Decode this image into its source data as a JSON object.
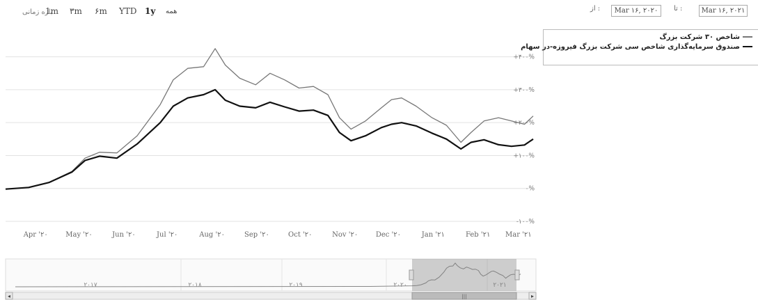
{
  "toolbar": {
    "zoom_label": "بازه زمانی",
    "buttons": [
      "1m",
      "۳m",
      "۶m",
      "YTD",
      "1y",
      "همه"
    ],
    "active": "1y",
    "from_label": "از :",
    "from_value": "Mar ۱۶, ۲۰۲۰",
    "to_label": "تا :",
    "to_value": "Mar ۱۶, ۲۰۲۱"
  },
  "legend": {
    "items": [
      "شاخص ۳۰ شرکت بزرگ",
      "صندوق سرمایه‌گذاری شاخص سی شرکت بزرگ فیروزه-در سهام"
    ]
  },
  "navigator": {
    "labels": [
      "۲۰۱۷",
      "۲۰۱۸",
      "۲۰۱۹",
      "۲۰۲۰",
      "۲۰۲۱"
    ],
    "left_arrow": "◂",
    "right_arrow": "▸",
    "scroll_grip": "|||"
  },
  "chart_data": {
    "type": "line",
    "title": "",
    "xlabel": "",
    "ylabel": "",
    "x_tick_labels": [
      "Apr '۲۰",
      "May '۲۰",
      "Jun '۲۰",
      "Jul '۲۰",
      "Aug '۲۰",
      "Sep '۲۰",
      "Oct '۲۰",
      "Nov '۲۰",
      "Dec '۲۰",
      "Jan '۲۱",
      "Feb '۲۱",
      "Mar '۲۱"
    ],
    "y_ticks": [
      -100,
      0,
      100,
      200,
      300,
      400
    ],
    "y_tick_labels": [
      "-۱۰۰%",
      "۰%",
      "+۱۰۰%",
      "+۲۰۰%",
      "+۳۰۰%",
      "+۴۰۰%"
    ],
    "ylim": [
      -100,
      450
    ],
    "xlim": [
      "2020-03-16",
      "2021-03-16"
    ],
    "grid": true,
    "legend_position": "top-right",
    "series": [
      {
        "name": "شاخص ۳۰ شرکت بزرگ",
        "color": "#777777",
        "x": [
          "2020-03-16",
          "2020-04-01",
          "2020-04-15",
          "2020-05-01",
          "2020-05-10",
          "2020-05-20",
          "2020-06-01",
          "2020-06-15",
          "2020-07-01",
          "2020-07-10",
          "2020-07-20",
          "2020-07-31",
          "2020-08-08",
          "2020-08-15",
          "2020-08-25",
          "2020-09-05",
          "2020-09-15",
          "2020-09-25",
          "2020-10-05",
          "2020-10-15",
          "2020-10-25",
          "2020-11-02",
          "2020-11-10",
          "2020-11-20",
          "2020-12-01",
          "2020-12-08",
          "2020-12-15",
          "2020-12-25",
          "2021-01-05",
          "2021-01-15",
          "2021-01-25",
          "2021-02-01",
          "2021-02-10",
          "2021-02-20",
          "2021-03-01",
          "2021-03-10",
          "2021-03-16"
        ],
        "y": [
          -2,
          3,
          18,
          52,
          92,
          110,
          108,
          160,
          255,
          330,
          365,
          370,
          425,
          375,
          335,
          315,
          350,
          330,
          305,
          310,
          285,
          215,
          180,
          205,
          245,
          270,
          275,
          250,
          215,
          192,
          140,
          170,
          205,
          215,
          205,
          195,
          220
        ]
      },
      {
        "name": "صندوق سرمایه‌گذاری شاخص سی شرکت بزرگ فیروزه-در سهام",
        "color": "#111111",
        "x": [
          "2020-03-16",
          "2020-04-01",
          "2020-04-15",
          "2020-05-01",
          "2020-05-10",
          "2020-05-20",
          "2020-06-01",
          "2020-06-15",
          "2020-07-01",
          "2020-07-10",
          "2020-07-20",
          "2020-07-31",
          "2020-08-08",
          "2020-08-15",
          "2020-08-25",
          "2020-09-05",
          "2020-09-15",
          "2020-09-25",
          "2020-10-05",
          "2020-10-15",
          "2020-10-25",
          "2020-11-02",
          "2020-11-10",
          "2020-11-20",
          "2020-12-01",
          "2020-12-08",
          "2020-12-15",
          "2020-12-25",
          "2021-01-05",
          "2021-01-15",
          "2021-01-25",
          "2021-02-01",
          "2021-02-10",
          "2021-02-20",
          "2021-03-01",
          "2021-03-10",
          "2021-03-16"
        ],
        "y": [
          -2,
          3,
          18,
          50,
          85,
          98,
          92,
          135,
          200,
          250,
          275,
          285,
          300,
          268,
          250,
          245,
          262,
          248,
          235,
          238,
          222,
          170,
          145,
          160,
          185,
          195,
          200,
          190,
          168,
          150,
          120,
          140,
          148,
          133,
          128,
          132,
          150
        ]
      }
    ]
  }
}
